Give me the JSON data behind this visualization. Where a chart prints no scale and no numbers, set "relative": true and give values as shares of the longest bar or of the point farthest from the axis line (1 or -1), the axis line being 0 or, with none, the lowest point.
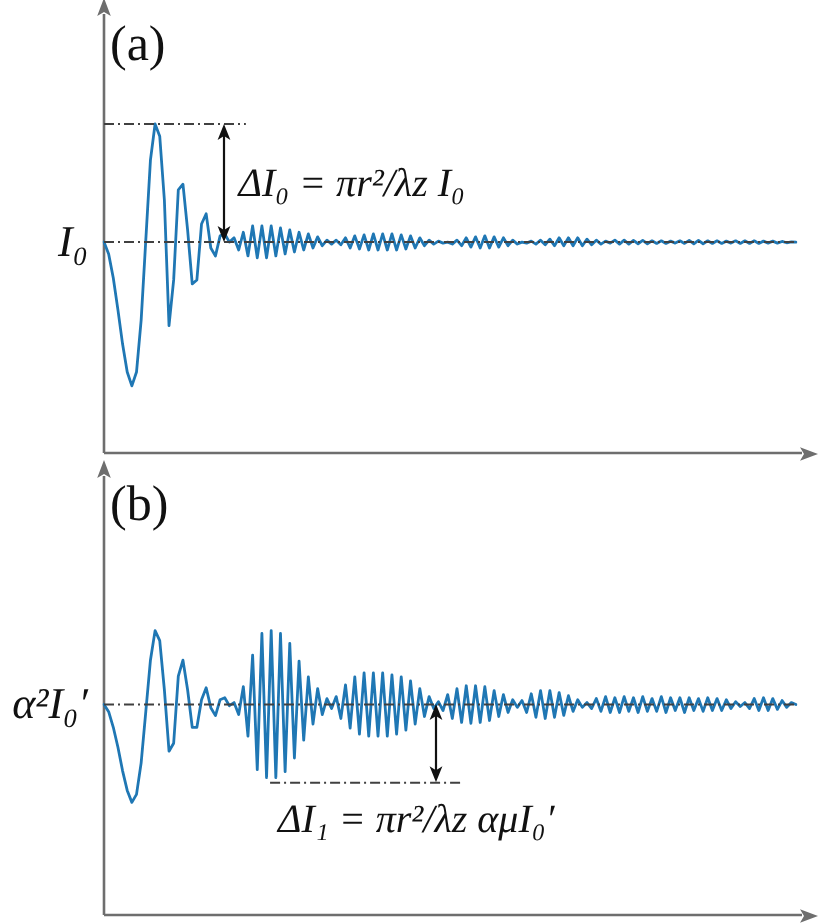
{
  "chart_data": [
    {
      "type": "line",
      "title": "(a)",
      "relative": true,
      "tick_labels": false,
      "marker": "none",
      "line_style": "solid",
      "color": "#1f77b4",
      "categories": [
        null,
        null,
        null,
        null,
        null,
        null,
        null,
        null,
        null,
        null,
        null,
        null,
        null,
        null,
        null,
        null,
        null,
        null,
        null,
        null,
        null,
        null,
        null,
        null,
        null,
        null,
        null,
        null,
        null,
        null,
        null,
        null,
        null,
        null,
        null,
        null,
        null,
        null,
        null,
        null,
        null,
        null,
        null,
        null,
        null,
        null,
        null,
        null,
        null,
        null,
        null,
        null,
        null,
        null,
        null,
        null,
        null,
        null,
        null,
        null,
        null,
        null,
        null,
        null,
        null,
        null,
        null,
        null,
        null,
        null,
        null,
        null,
        null,
        null,
        null,
        null,
        null,
        null,
        null,
        null,
        null,
        null,
        null,
        null,
        null,
        null,
        null,
        null,
        null,
        null,
        null,
        null,
        null,
        null,
        null,
        null,
        null,
        null,
        null,
        null,
        null,
        null,
        null,
        null,
        null,
        null,
        null,
        null,
        null,
        null,
        null,
        null,
        null,
        null,
        null,
        null,
        null,
        null,
        null,
        null,
        null,
        null,
        null,
        null,
        null,
        null,
        null,
        null,
        null,
        null,
        null,
        null,
        null,
        null,
        null,
        null,
        null,
        null,
        null,
        null,
        null,
        null,
        null,
        null,
        null,
        null,
        null,
        null,
        null,
        null
      ],
      "values": [
        0.641,
        0.605,
        0.532,
        0.435,
        0.331,
        0.246,
        0.204,
        0.246,
        0.404,
        0.647,
        0.89,
        1,
        0.963,
        0.769,
        0.387,
        0.526,
        0.8,
        0.817,
        0.678,
        0.514,
        0.526,
        0.696,
        0.727,
        0.623,
        0.599,
        0.66,
        0.666,
        0.641,
        0.654,
        0.617,
        0.671,
        0.599,
        0.69,
        0.593,
        0.69,
        0.593,
        0.69,
        0.599,
        0.684,
        0.605,
        0.678,
        0.611,
        0.671,
        0.617,
        0.666,
        0.623,
        0.657,
        0.63,
        0.647,
        0.635,
        0.647,
        0.633,
        0.654,
        0.623,
        0.66,
        0.62,
        0.663,
        0.617,
        0.666,
        0.617,
        0.666,
        0.617,
        0.666,
        0.617,
        0.663,
        0.62,
        0.66,
        0.623,
        0.654,
        0.63,
        0.647,
        0.635,
        0.644,
        0.638,
        0.641,
        0.635,
        0.647,
        0.63,
        0.654,
        0.626,
        0.657,
        0.623,
        0.66,
        0.623,
        0.657,
        0.626,
        0.654,
        0.63,
        0.647,
        0.635,
        0.641,
        0.638,
        0.644,
        0.635,
        0.647,
        0.633,
        0.65,
        0.63,
        0.654,
        0.63,
        0.654,
        0.63,
        0.654,
        0.63,
        0.65,
        0.633,
        0.647,
        0.635,
        0.644,
        0.638,
        0.647,
        0.635,
        0.647,
        0.635,
        0.646,
        0.636,
        0.646,
        0.636,
        0.645,
        0.637,
        0.645,
        0.637,
        0.644,
        0.638,
        0.645,
        0.637,
        0.646,
        0.636,
        0.646,
        0.636,
        0.645,
        0.637,
        0.645,
        0.637,
        0.644,
        0.638,
        0.645,
        0.637,
        0.645,
        0.637,
        0.645,
        0.637,
        0.644,
        0.638,
        0.644,
        0.638,
        0.643,
        0.639,
        0.642,
        0.641
      ],
      "ref_lines": [
        {
          "axis": "y",
          "value": 0.641,
          "label": "I₀",
          "color": "#404040",
          "line_style": "dashed"
        },
        {
          "axis": "y",
          "value": 1,
          "color": "#404040",
          "line_style": "dashed"
        }
      ],
      "annotations": [
        "ΔI₀ = πr²/λz I₀"
      ]
    },
    {
      "type": "line",
      "title": "(b)",
      "relative": true,
      "tick_labels": false,
      "marker": "none",
      "line_style": "solid",
      "color": "#1f77b4",
      "categories": [
        null,
        null,
        null,
        null,
        null,
        null,
        null,
        null,
        null,
        null,
        null,
        null,
        null,
        null,
        null,
        null,
        null,
        null,
        null,
        null,
        null,
        null,
        null,
        null,
        null,
        null,
        null,
        null,
        null,
        null,
        null,
        null,
        null,
        null,
        null,
        null,
        null,
        null,
        null,
        null,
        null,
        null,
        null,
        null,
        null,
        null,
        null,
        null,
        null,
        null,
        null,
        null,
        null,
        null,
        null,
        null,
        null,
        null,
        null,
        null,
        null,
        null,
        null,
        null,
        null,
        null,
        null,
        null,
        null,
        null,
        null,
        null,
        null,
        null,
        null,
        null,
        null,
        null,
        null,
        null,
        null,
        null,
        null,
        null,
        null,
        null,
        null,
        null,
        null,
        null,
        null,
        null,
        null,
        null,
        null,
        null,
        null,
        null,
        null,
        null,
        null,
        null,
        null,
        null,
        null,
        null,
        null,
        null,
        null,
        null,
        null,
        null,
        null,
        null,
        null,
        null,
        null,
        null,
        null,
        null,
        null,
        null,
        null,
        null,
        null,
        null,
        null,
        null,
        null,
        null,
        null,
        null,
        null,
        null,
        null,
        null,
        null,
        null,
        null,
        null,
        null,
        null,
        null,
        null,
        null,
        null,
        null,
        null,
        null,
        null
      ],
      "values": [
        0.74,
        0.715,
        0.66,
        0.59,
        0.507,
        0.438,
        0.396,
        0.424,
        0.535,
        0.715,
        0.896,
        1,
        0.965,
        0.792,
        0.576,
        0.604,
        0.84,
        0.896,
        0.792,
        0.66,
        0.66,
        0.757,
        0.799,
        0.729,
        0.701,
        0.757,
        0.764,
        0.736,
        0.747,
        0.705,
        0.803,
        0.629,
        0.914,
        0.511,
        0.99,
        0.483,
        1,
        0.483,
        0.99,
        0.504,
        0.955,
        0.552,
        0.893,
        0.615,
        0.837,
        0.671,
        0.796,
        0.705,
        0.761,
        0.726,
        0.768,
        0.691,
        0.809,
        0.657,
        0.837,
        0.636,
        0.851,
        0.629,
        0.851,
        0.629,
        0.851,
        0.629,
        0.844,
        0.636,
        0.837,
        0.65,
        0.823,
        0.671,
        0.796,
        0.698,
        0.768,
        0.726,
        0.75,
        0.719,
        0.775,
        0.691,
        0.796,
        0.677,
        0.806,
        0.674,
        0.806,
        0.677,
        0.803,
        0.684,
        0.789,
        0.698,
        0.775,
        0.712,
        0.757,
        0.73,
        0.754,
        0.712,
        0.778,
        0.695,
        0.789,
        0.691,
        0.789,
        0.695,
        0.782,
        0.702,
        0.771,
        0.716,
        0.757,
        0.73,
        0.747,
        0.726,
        0.761,
        0.716,
        0.768,
        0.712,
        0.764,
        0.712,
        0.768,
        0.716,
        0.764,
        0.712,
        0.768,
        0.716,
        0.761,
        0.716,
        0.768,
        0.712,
        0.764,
        0.719,
        0.764,
        0.712,
        0.764,
        0.719,
        0.761,
        0.716,
        0.764,
        0.719,
        0.761,
        0.719,
        0.757,
        0.726,
        0.75,
        0.733,
        0.747,
        0.726,
        0.761,
        0.719,
        0.764,
        0.719,
        0.761,
        0.723,
        0.754,
        0.73,
        0.747,
        0.74
      ],
      "ref_lines": [
        {
          "axis": "y",
          "value": 0.74,
          "label": "α²I₀′",
          "color": "#404040",
          "line_style": "dashed"
        },
        {
          "axis": "y",
          "value": 0.465,
          "color": "#404040",
          "line_style": "dashed"
        }
      ],
      "annotations": [
        "ΔI₁ = πr²/λz αμI₀′"
      ]
    }
  ]
}
